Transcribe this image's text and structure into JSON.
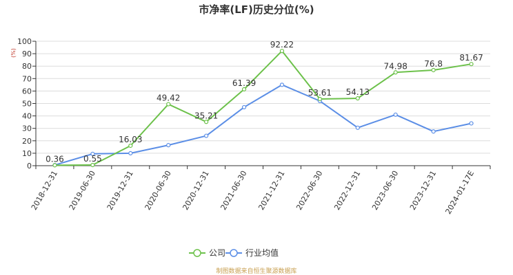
{
  "chart_data": {
    "type": "line",
    "title": "市净率(LF)历史分位(%)",
    "ylabel": "(%)",
    "xlabel": "",
    "ylim": [
      0,
      100
    ],
    "yticks": [
      0,
      10,
      20,
      30,
      40,
      50,
      60,
      70,
      80,
      90,
      100
    ],
    "categories": [
      "2018-12-31",
      "2019-06-30",
      "2019-12-31",
      "2020-06-30",
      "2020-12-31",
      "2021-06-30",
      "2021-12-31",
      "2022-06-30",
      "2022-12-31",
      "2023-06-30",
      "2023-12-31",
      "2024-01-17E"
    ],
    "series": [
      {
        "name": "公司",
        "color": "#6cc14a",
        "values": [
          0.36,
          0.55,
          16.03,
          49.42,
          35.21,
          61.39,
          92.22,
          53.61,
          54.13,
          74.98,
          76.8,
          81.67
        ],
        "labels": [
          "0.36",
          "0.55",
          "16.03",
          "49.42",
          "35.21",
          "61.39",
          "92.22",
          "53.61",
          "54.13",
          "74.98",
          "76.8",
          "81.67"
        ]
      },
      {
        "name": "行业均值",
        "color": "#5b8ee6",
        "values": [
          0.5,
          9.5,
          10,
          16.5,
          24,
          47,
          65,
          52,
          30.5,
          41,
          27.5,
          34
        ]
      }
    ],
    "grid": true,
    "legend_position": "bottom-center",
    "source": "制图数据来自恒生聚源数据库"
  }
}
